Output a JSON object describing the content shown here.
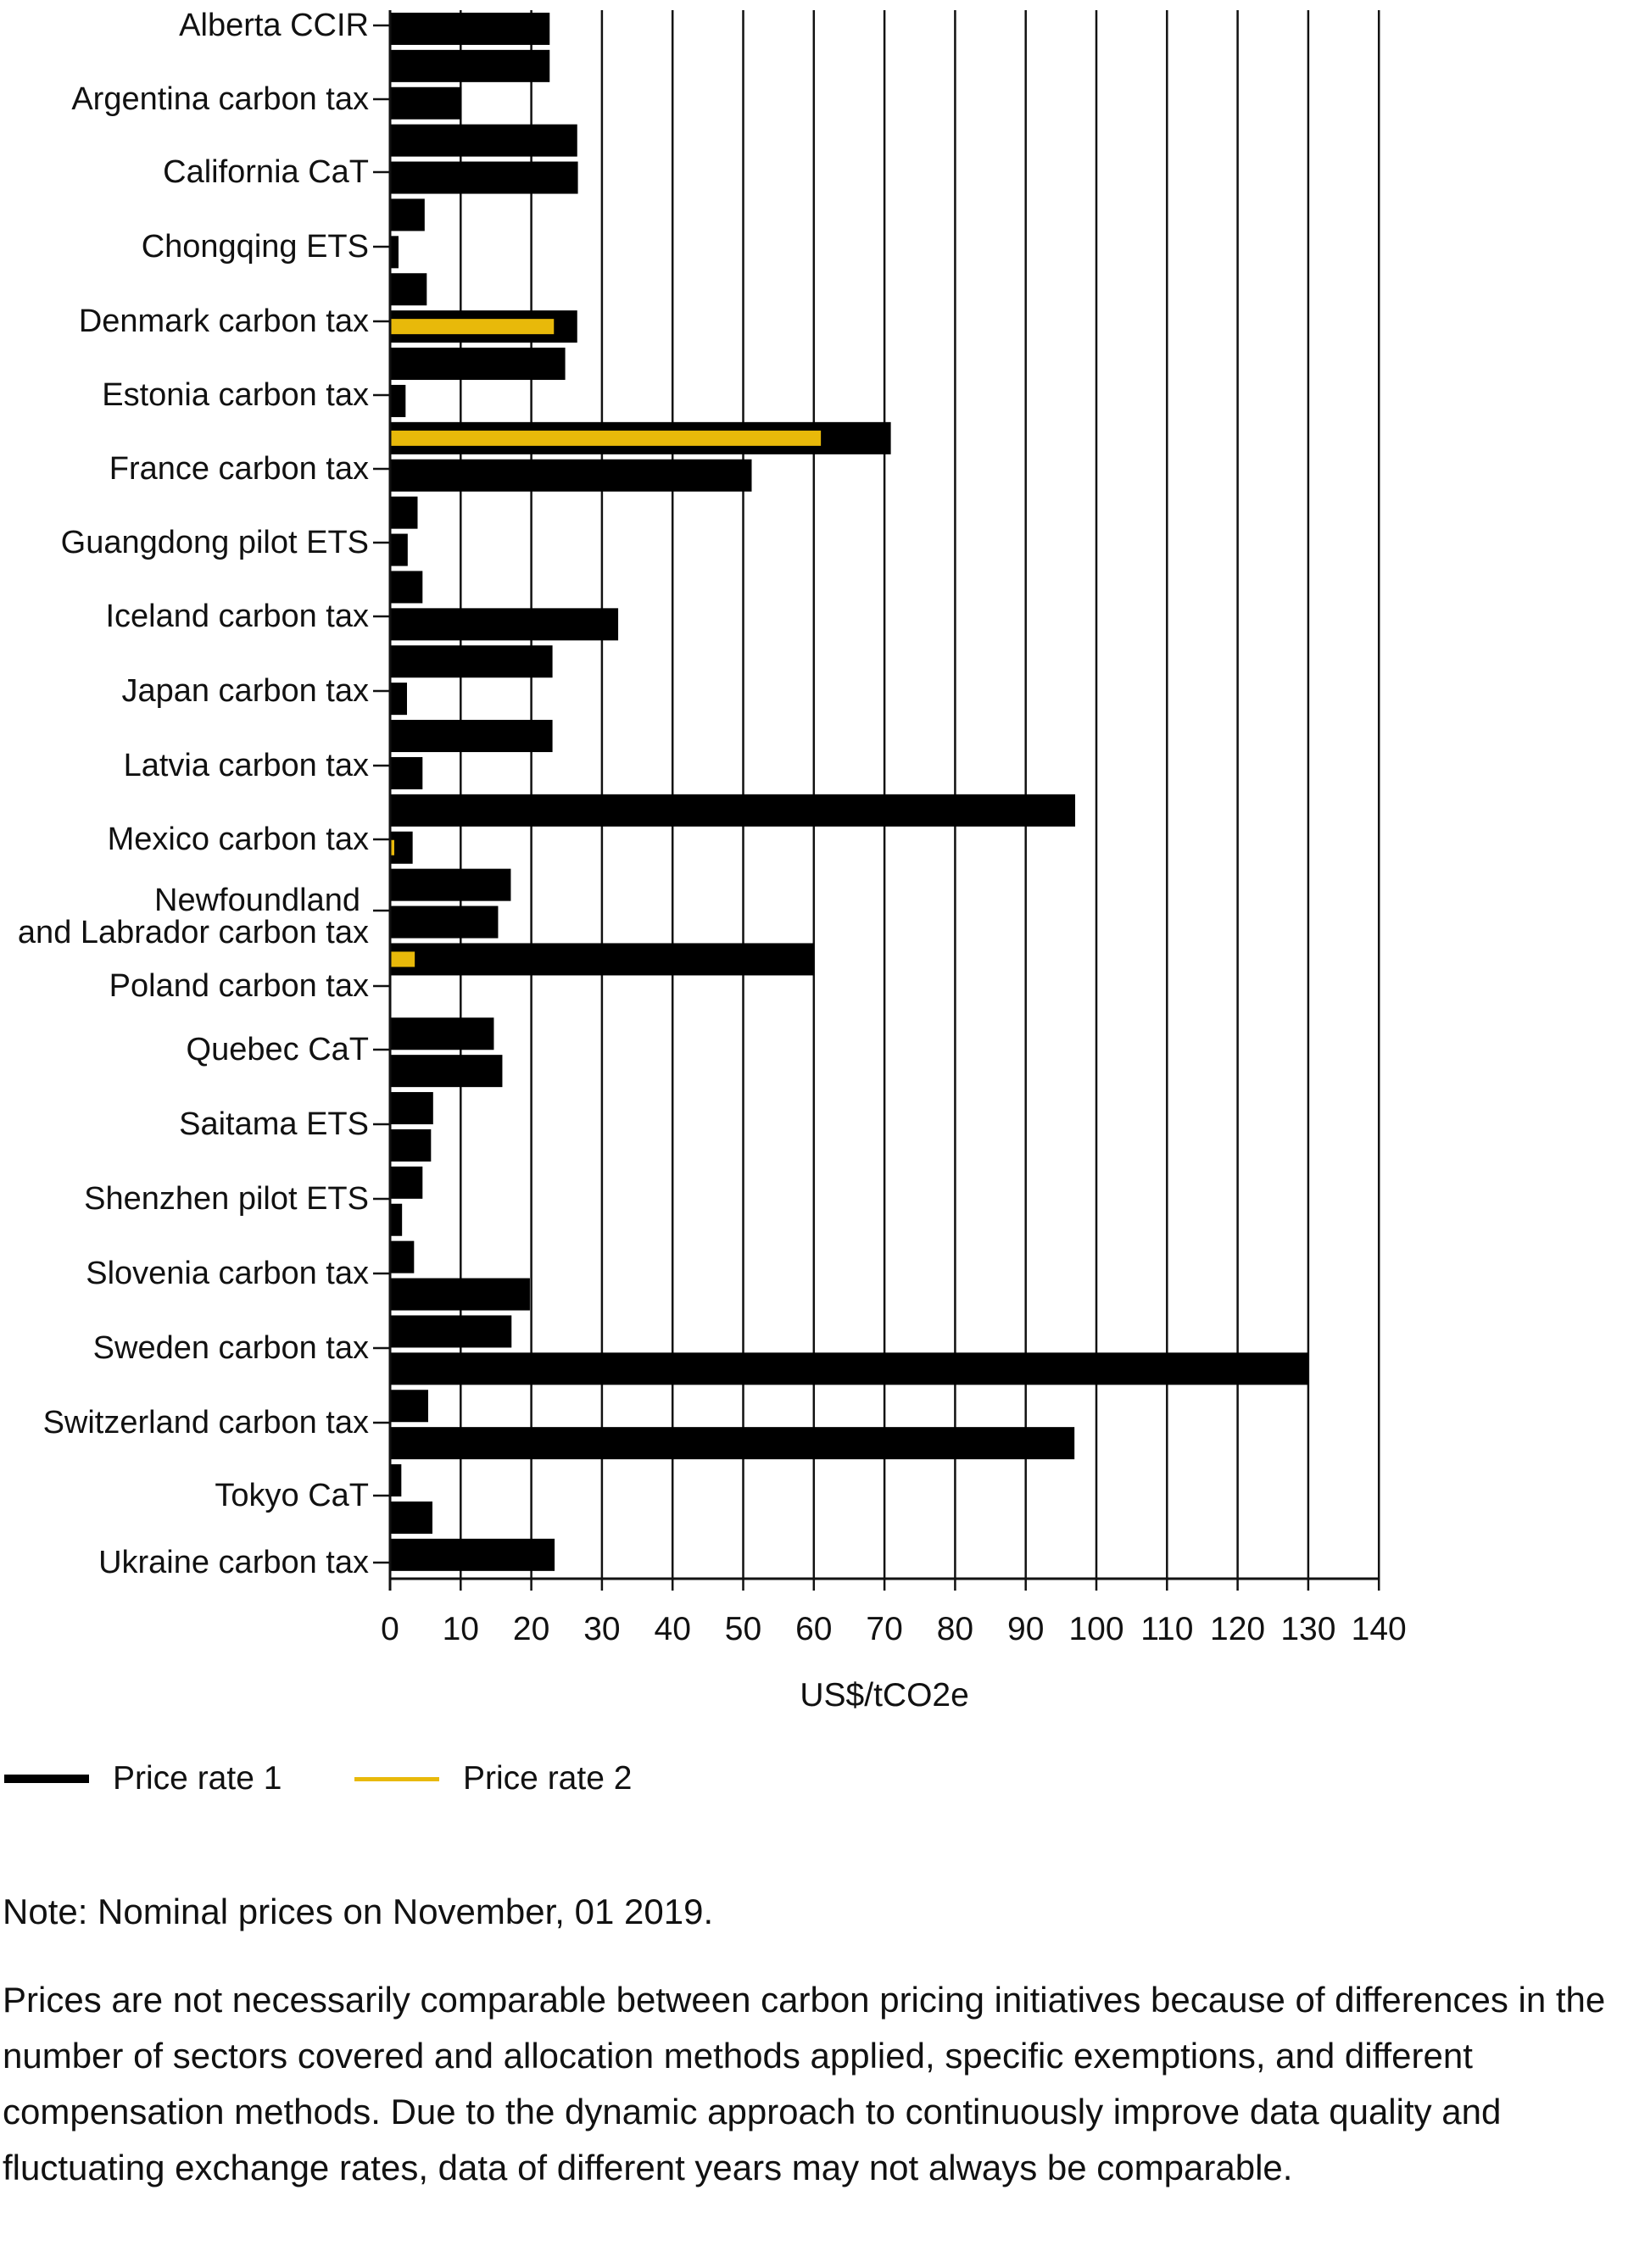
{
  "chart_data": {
    "type": "bar",
    "orientation": "horizontal",
    "title": "",
    "xlabel": "US$/tCO2e",
    "ylabel": "",
    "xlim": [
      0,
      140
    ],
    "x_ticks": [
      0,
      10,
      20,
      30,
      40,
      50,
      60,
      70,
      80,
      90,
      100,
      110,
      120,
      130,
      140
    ],
    "grid": "vertical gridlines",
    "legend_position": "bottom-left",
    "category_labels": [
      "Alberta CCIR",
      "Argentina carbon tax",
      "California CaT",
      "Chongqing ETS",
      "Denmark carbon tax",
      "Estonia carbon tax",
      "France carbon tax",
      "Guangdong pilot ETS",
      "Iceland carbon tax",
      "Japan carbon tax",
      "Latvia carbon tax",
      "Mexico carbon tax",
      "Newfoundland\nand Labrador carbon tax",
      "Poland carbon tax",
      "Quebec CaT",
      "Saitama ETS",
      "Shenzhen pilot ETS",
      "Slovenia carbon tax",
      "Sweden carbon tax",
      "Switzerland carbon tax",
      "Tokyo CaT",
      "Ukraine carbon tax"
    ],
    "series": [
      {
        "name": "Price rate 1",
        "color": "#000000",
        "values": [
          22.6,
          22.6,
          10.1,
          26.5,
          26.6,
          4.9,
          1.2,
          5.2,
          26.5,
          24.8,
          2.2,
          70.9,
          51.2,
          3.9,
          2.5,
          4.6,
          32.3,
          23.0,
          2.4,
          23.0,
          4.6,
          97.0,
          3.2,
          17.1,
          15.3,
          60.0,
          0.1,
          14.7,
          15.9,
          6.1,
          5.8,
          4.6,
          1.7,
          3.4,
          19.8,
          17.2,
          130.0,
          5.4,
          96.9,
          1.6,
          6.0,
          23.3
        ]
      },
      {
        "name": "Price rate 2",
        "color": "#e8b90a",
        "values": [
          0,
          0,
          0,
          0,
          0,
          0,
          0,
          0,
          23.2,
          0,
          0,
          61.0,
          0,
          0,
          0,
          0,
          0,
          0,
          0,
          0,
          0,
          0,
          0.6,
          0,
          0,
          3.5,
          0,
          0,
          0,
          0,
          0,
          0,
          0,
          0,
          0,
          0,
          0,
          0,
          0,
          0,
          0,
          0
        ]
      }
    ]
  },
  "legend": {
    "items": [
      {
        "label": "Price rate 1",
        "color": "#000000"
      },
      {
        "label": "Price rate 2",
        "color": "#e8b90a"
      }
    ]
  },
  "notes": {
    "note_1": "Note: Nominal prices on November, 01 2019.",
    "note_2": "Prices are not necessarily comparable between carbon pricing initiatives because of differences in the number of sectors covered and allocation methods applied, specific exemptions, and different compensation methods. Due to the dynamic approach to continuously improve data quality and fluctuating exchange rates, data of different years may not always be comparable."
  }
}
